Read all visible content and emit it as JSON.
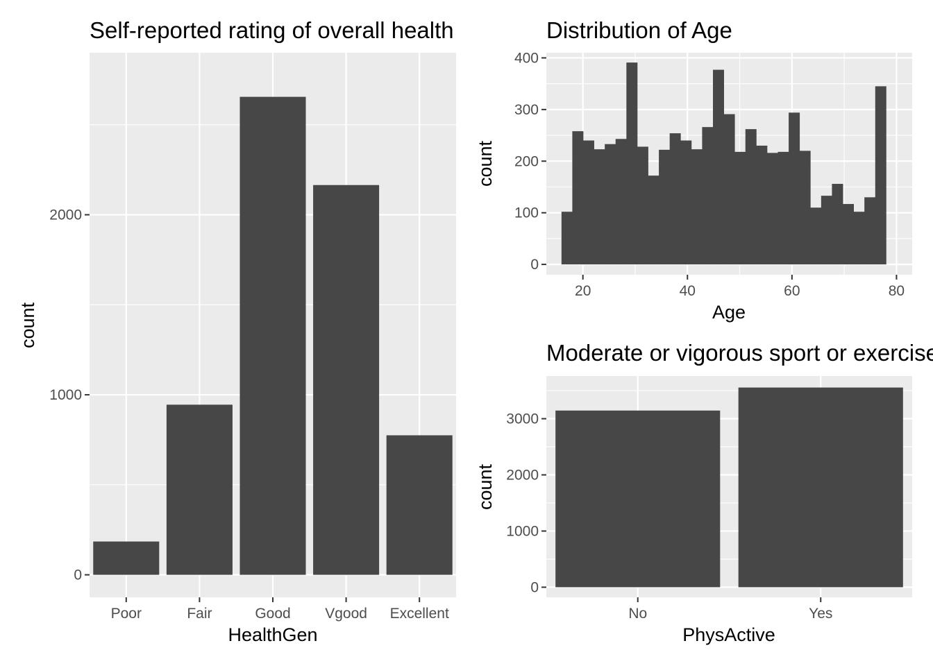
{
  "chart_data": [
    {
      "type": "bar",
      "title": "Self-reported rating of overall health",
      "xlabel": "HealthGen",
      "ylabel": "count",
      "categories": [
        "Poor",
        "Fair",
        "Good",
        "Vgood",
        "Excellent"
      ],
      "values": [
        185,
        945,
        2655,
        2165,
        775
      ],
      "ylim": [
        -125,
        2900
      ],
      "y_ticks": [
        0,
        1000,
        2000
      ],
      "grid": true,
      "color": "#474747"
    },
    {
      "type": "bar",
      "title": "Distribution of Age",
      "xlabel": "Age",
      "ylabel": "count",
      "bin_start": 15.9,
      "bin_width": 2.07,
      "values": [
        102,
        258,
        240,
        223,
        233,
        243,
        391,
        228,
        172,
        222,
        254,
        240,
        223,
        266,
        377,
        291,
        218,
        262,
        230,
        216,
        218,
        294,
        220,
        110,
        133,
        156,
        117,
        102,
        130,
        345
      ],
      "xlim": [
        13,
        83
      ],
      "ylim": [
        -20,
        410
      ],
      "x_ticks": [
        20,
        40,
        60,
        80
      ],
      "y_ticks": [
        0,
        100,
        200,
        300,
        400
      ],
      "grid": true,
      "color": "#474747"
    },
    {
      "type": "bar",
      "title": "Moderate or vigorous sport or exercise",
      "xlabel": "PhysActive",
      "ylabel": "count",
      "categories": [
        "No",
        "Yes"
      ],
      "values": [
        3145,
        3555
      ],
      "ylim": [
        -180,
        3760
      ],
      "y_ticks": [
        0,
        1000,
        2000,
        3000
      ],
      "grid": true,
      "color": "#474747"
    }
  ]
}
